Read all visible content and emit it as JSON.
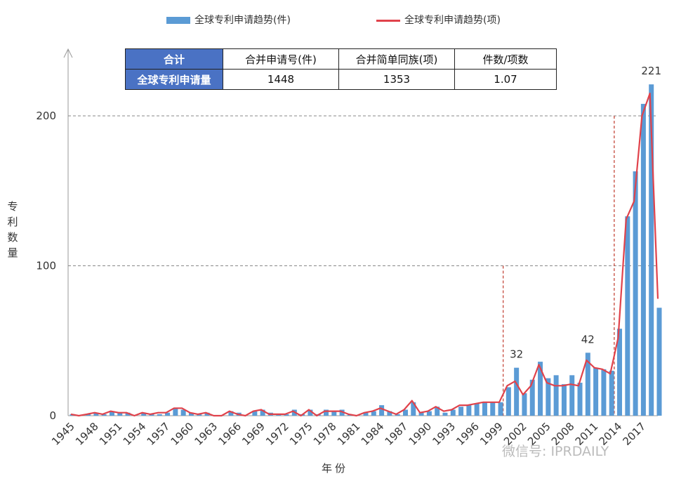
{
  "legend": {
    "bar_label": "全球专利申请趋势(件)",
    "line_label": "全球专利申请趋势(项)"
  },
  "table": {
    "header_row": [
      "合计",
      "合并申请号(件)",
      "合并简单同族(项)",
      "件数/项数"
    ],
    "data_row": [
      "全球专利申请量",
      "1448",
      "1353",
      "1.07"
    ]
  },
  "watermark": "微信号: IPRDAILY",
  "colors": {
    "bar": "#5b9bd5",
    "line": "#e0424b",
    "table_header": "#4a72c4",
    "ref_line": "#c0392b"
  },
  "chart_data": {
    "type": "bar",
    "title": "",
    "xlabel": "年份",
    "ylabel": "专利数量",
    "ylim": [
      0,
      250
    ],
    "yticks": [
      0,
      100,
      200
    ],
    "grid": "dashed horizontal at 100 and 200",
    "legend_position": "top",
    "x": [
      1945,
      1946,
      1947,
      1948,
      1949,
      1950,
      1951,
      1952,
      1953,
      1954,
      1955,
      1956,
      1957,
      1958,
      1959,
      1960,
      1961,
      1962,
      1963,
      1964,
      1965,
      1966,
      1967,
      1968,
      1969,
      1970,
      1971,
      1972,
      1973,
      1974,
      1975,
      1976,
      1977,
      1978,
      1979,
      1980,
      1981,
      1982,
      1983,
      1984,
      1985,
      1986,
      1987,
      1988,
      1989,
      1990,
      1991,
      1992,
      1993,
      1994,
      1995,
      1996,
      1997,
      1998,
      1999,
      2000,
      2001,
      2002,
      2003,
      2004,
      2005,
      2006,
      2007,
      2008,
      2009,
      2010,
      2011,
      2012,
      2013,
      2014,
      2015,
      2016,
      2017,
      2018,
      2019
    ],
    "x_tick_labels": [
      "1945",
      "1948",
      "1951",
      "1954",
      "1957",
      "1960",
      "1963",
      "1966",
      "1969",
      "1972",
      "1975",
      "1978",
      "1981",
      "1984",
      "1987",
      "1990",
      "1993",
      "1996",
      "1999",
      "2002",
      "2005",
      "2008",
      "2011",
      "2014",
      "2017"
    ],
    "series": [
      {
        "name": "全球专利申请趋势(件)",
        "kind": "bar",
        "values": [
          1,
          0,
          1,
          2,
          1,
          3,
          2,
          2,
          0,
          2,
          1,
          1,
          2,
          5,
          4,
          2,
          1,
          2,
          0,
          0,
          3,
          2,
          0,
          3,
          4,
          2,
          1,
          1,
          4,
          1,
          4,
          1,
          4,
          3,
          4,
          1,
          0,
          2,
          3,
          7,
          3,
          1,
          4,
          9,
          2,
          3,
          6,
          2,
          4,
          6,
          7,
          8,
          9,
          9,
          9,
          19,
          32,
          15,
          24,
          36,
          25,
          27,
          21,
          27,
          22,
          42,
          32,
          31,
          30,
          58,
          133,
          163,
          208,
          221,
          72
        ]
      },
      {
        "name": "全球专利申请趋势(项)",
        "kind": "line",
        "values": [
          1,
          0,
          1,
          2,
          1,
          3,
          2,
          2,
          0,
          2,
          1,
          2,
          2,
          5,
          5,
          2,
          1,
          2,
          0,
          0,
          3,
          1,
          0,
          3,
          4,
          1,
          1,
          1,
          3,
          0,
          4,
          0,
          3,
          3,
          3,
          1,
          0,
          2,
          3,
          5,
          3,
          1,
          4,
          10,
          2,
          3,
          6,
          3,
          4,
          7,
          7,
          8,
          9,
          9,
          9,
          20,
          23,
          14,
          20,
          34,
          22,
          20,
          20,
          21,
          20,
          37,
          32,
          31,
          28,
          52,
          131,
          143,
          200,
          215,
          78
        ]
      }
    ],
    "annotations": [
      {
        "x": 2001,
        "text": "32"
      },
      {
        "x": 2010,
        "text": "42"
      },
      {
        "x": 2018,
        "text": "221"
      }
    ],
    "reference_lines": [
      {
        "x": 1999,
        "y_top": 100
      },
      {
        "x": 2013,
        "y_top": 200
      }
    ]
  }
}
